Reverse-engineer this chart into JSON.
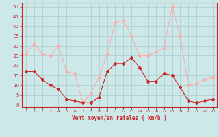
{
  "x": [
    0,
    1,
    2,
    3,
    4,
    5,
    6,
    7,
    8,
    9,
    10,
    11,
    12,
    13,
    14,
    15,
    16,
    17,
    18,
    19,
    20,
    21,
    22,
    23
  ],
  "wind_mean": [
    17,
    17,
    13,
    10,
    8,
    3,
    2,
    1,
    1,
    4,
    17,
    21,
    21,
    24,
    19,
    12,
    12,
    16,
    15,
    9,
    2,
    1,
    2,
    3
  ],
  "wind_gust": [
    26,
    31,
    26,
    25,
    30,
    17,
    16,
    1,
    6,
    14,
    26,
    42,
    43,
    35,
    25,
    25,
    27,
    29,
    50,
    35,
    10,
    11,
    13,
    14
  ],
  "mean_color": "#cc2222",
  "gust_color": "#ffaaaa",
  "bg_color": "#cce8e8",
  "grid_color": "#aacccc",
  "xlabel": "Vent moyen/en rafales ( km/h )",
  "ylabel_ticks": [
    0,
    5,
    10,
    15,
    20,
    25,
    30,
    35,
    40,
    45,
    50
  ],
  "ylim": [
    -1,
    52
  ],
  "xlim": [
    -0.5,
    23.5
  ],
  "arrow_row": -8
}
